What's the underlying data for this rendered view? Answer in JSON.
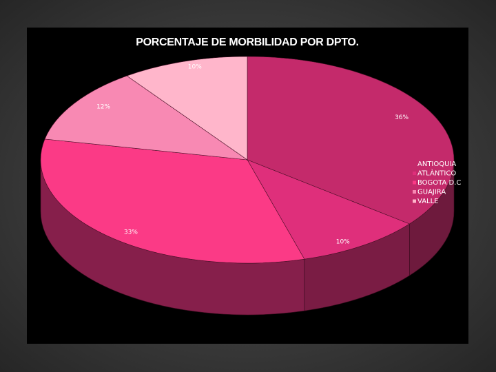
{
  "chart_data": {
    "type": "pie",
    "title": "PORCENTAJE DE MORBILIDAD POR DPTO.",
    "categories": [
      "ANTIOQUIA",
      "ATLÀNTICO",
      "BOGOTA D.C",
      "GUAJIRA",
      "VALLE"
    ],
    "values": [
      36,
      10,
      33,
      12,
      10
    ],
    "data_labels": [
      "36%",
      "10%",
      "33%",
      "12%",
      "10%"
    ],
    "colors": [
      "#c42a6b",
      "#df2f7b",
      "#fb3a86",
      "#f889b3",
      "#ffb6cb"
    ],
    "side_colors": [
      "#6e1a3d",
      "#7a1c44",
      "#861f4b",
      "#8a3356",
      "#8c4a5e"
    ],
    "three_d": true,
    "legend_position": "right"
  }
}
